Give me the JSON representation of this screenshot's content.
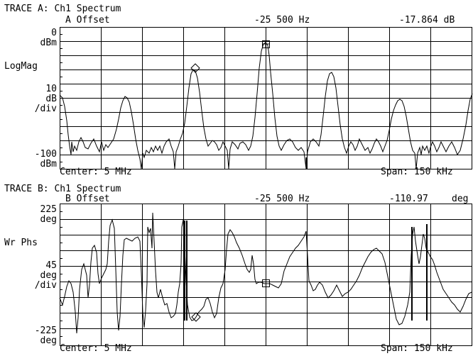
{
  "trace_a": {
    "title": "TRACE A: Ch1 Spectrum",
    "marker_label": "A Offset",
    "marker_freq": "-25 500 Hz",
    "marker_value": "-17.864 dB",
    "y_top": "0",
    "y_top_unit": "dBm",
    "format": "LogMag",
    "scale": "10",
    "scale_unit1": "dB",
    "scale_unit2": "/div",
    "y_bottom": "-100",
    "y_bottom_unit": "dBm",
    "center": "Center: 5 MHz",
    "span": "Span: 150 kHz"
  },
  "trace_b": {
    "title": "TRACE B: Ch1 Spectrum",
    "marker_label": "B Offset",
    "marker_freq": "-25 500 Hz",
    "marker_value": "-110.97",
    "marker_unit": "deg",
    "y_top": "225",
    "y_top_unit": "deg",
    "format": "Wr Phs",
    "scale": "45",
    "scale_unit1": "deg",
    "scale_unit2": "/div",
    "y_bottom": "-225",
    "y_bottom_unit": "deg",
    "center": "Center: 5 MHz",
    "span": "Span: 150 kHz"
  },
  "colors": {
    "trace": "#000000",
    "background": "#ffffff"
  }
}
